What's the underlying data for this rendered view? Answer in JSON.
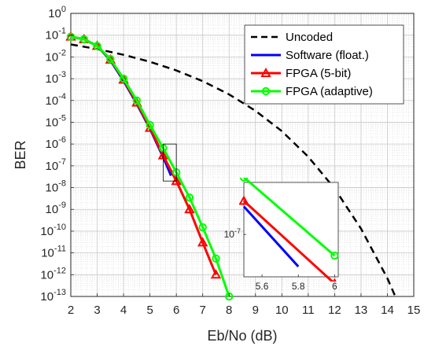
{
  "chart_data": {
    "type": "line",
    "xlabel": "Eb/No (dB)",
    "ylabel": "BER",
    "xlim": [
      2,
      15
    ],
    "ylim_exp": [
      -13,
      0
    ],
    "y_scale": "log",
    "grid": true,
    "minor_grid": true,
    "legend_position": "top-right",
    "x_ticks": [
      "2",
      "3",
      "4",
      "5",
      "6",
      "7",
      "8",
      "9",
      "10",
      "11",
      "12",
      "13",
      "14",
      "15"
    ],
    "y_ticks": [
      {
        "base": "10",
        "exp": "0",
        "value": 0
      },
      {
        "base": "10",
        "exp": "-1",
        "value": -1
      },
      {
        "base": "10",
        "exp": "-2",
        "value": -2
      },
      {
        "base": "10",
        "exp": "-3",
        "value": -3
      },
      {
        "base": "10",
        "exp": "-4",
        "value": -4
      },
      {
        "base": "10",
        "exp": "-5",
        "value": -5
      },
      {
        "base": "10",
        "exp": "-6",
        "value": -6
      },
      {
        "base": "10",
        "exp": "-7",
        "value": -7
      },
      {
        "base": "10",
        "exp": "-8",
        "value": -8
      },
      {
        "base": "10",
        "exp": "-9",
        "value": -9
      },
      {
        "base": "10",
        "exp": "-10",
        "value": -10
      },
      {
        "base": "10",
        "exp": "-11",
        "value": -11
      },
      {
        "base": "10",
        "exp": "-12",
        "value": -12
      },
      {
        "base": "10",
        "exp": "-13",
        "value": -13
      }
    ],
    "series": [
      {
        "name": "Uncoded",
        "color": "#000000",
        "style": "dashed",
        "marker": "none",
        "x": [
          2,
          3,
          4,
          5,
          6,
          7,
          8,
          9,
          10,
          11,
          12,
          13,
          14,
          14.3
        ],
        "y": [
          0.0375,
          0.023,
          0.0125,
          0.006,
          0.0024,
          0.00077,
          0.00019,
          3.36e-05,
          3.9e-06,
          2.6e-07,
          9e-09,
          1.3e-10,
          6.8e-13,
          1e-13
        ]
      },
      {
        "name": "Software (float.)",
        "color": "#0000ff",
        "style": "solid",
        "marker": "none",
        "x": [
          2,
          2.5,
          3,
          3.5,
          4,
          4.5,
          5,
          5.5,
          5.8
        ],
        "y": [
          0.085,
          0.065,
          0.032,
          0.007,
          0.0008,
          7e-05,
          5e-06,
          2.5e-07,
          3.5e-08
        ]
      },
      {
        "name": "FPGA (5-bit)",
        "color": "#ff0000",
        "style": "solid",
        "marker": "triangle",
        "x": [
          2,
          2.5,
          3,
          3.5,
          4,
          4.5,
          5,
          5.5,
          6,
          6.5,
          7,
          7.5
        ],
        "y": [
          0.085,
          0.065,
          0.032,
          0.0075,
          0.0009,
          8e-05,
          5.5e-06,
          3e-07,
          2e-08,
          1e-09,
          3e-11,
          1e-12
        ]
      },
      {
        "name": "FPGA (adaptive)",
        "color": "#00ff00",
        "style": "solid",
        "marker": "circle",
        "x": [
          2,
          2.5,
          3,
          3.5,
          4,
          4.5,
          5,
          5.5,
          6,
          6.5,
          7,
          7.5,
          8
        ],
        "y": [
          0.085,
          0.065,
          0.032,
          0.008,
          0.001,
          0.0001,
          7.5e-06,
          6.5e-07,
          5e-08,
          3.5e-09,
          1.5e-10,
          5.5e-12,
          1e-13
        ]
      }
    ],
    "inset": {
      "xlim": [
        5.5,
        6.02
      ],
      "ylim": [
        2.5e-08,
        5.5e-07
      ],
      "x_ticks": [
        "5.6",
        "5.8",
        "6"
      ],
      "y_tick_label": {
        "base": "10",
        "exp": "-7",
        "value": 1e-07
      },
      "source_box": {
        "x": [
          5.5,
          6.0
        ],
        "y": [
          2e-08,
          1e-06
        ]
      }
    }
  }
}
